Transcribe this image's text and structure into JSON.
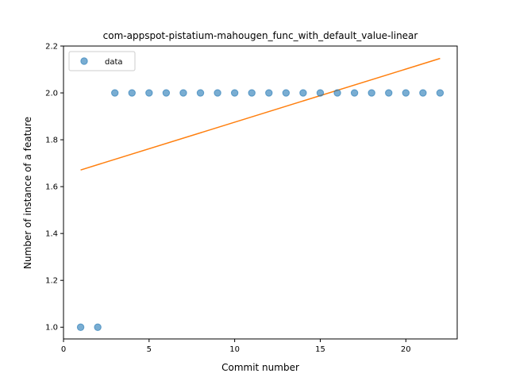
{
  "chart_data": {
    "type": "scatter",
    "title": "com-appspot-pistatium-mahougen_func_with_default_value-linear",
    "xlabel": "Commit number",
    "ylabel": "Number of instance of a feature",
    "xlim": [
      0,
      23
    ],
    "ylim": [
      0.95,
      2.2
    ],
    "xticks": [
      0,
      5,
      10,
      15,
      20
    ],
    "xtick_labels": [
      "0",
      "5",
      "10",
      "15",
      "20"
    ],
    "yticks": [
      1.0,
      1.2,
      1.4,
      1.6,
      1.8,
      2.0,
      2.2
    ],
    "ytick_labels": [
      "1.0",
      "1.2",
      "1.4",
      "1.6",
      "1.8",
      "2.0",
      "2.2"
    ],
    "grid": false,
    "legend_position": "top-left",
    "series": [
      {
        "name": "data",
        "kind": "scatter",
        "color": "#1f77b4",
        "x": [
          1,
          2,
          3,
          4,
          5,
          6,
          7,
          8,
          9,
          10,
          11,
          12,
          13,
          14,
          15,
          16,
          17,
          18,
          19,
          20,
          21,
          22
        ],
        "y": [
          1,
          1,
          2,
          2,
          2,
          2,
          2,
          2,
          2,
          2,
          2,
          2,
          2,
          2,
          2,
          2,
          2,
          2,
          2,
          2,
          2,
          2
        ]
      },
      {
        "kind": "line",
        "color": "#ff7f0e",
        "x": [
          1,
          22
        ],
        "y": [
          1.671,
          2.147
        ]
      }
    ],
    "legend": {
      "entries": [
        "data"
      ]
    }
  }
}
